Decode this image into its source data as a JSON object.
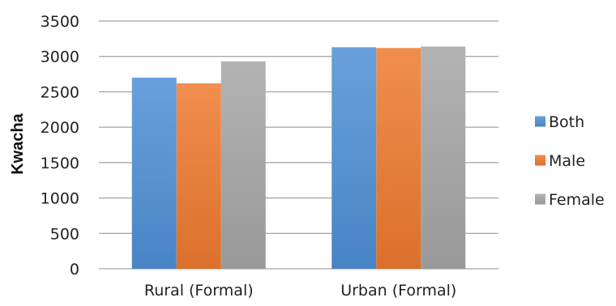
{
  "chart_data": {
    "type": "bar",
    "categories": [
      "Rural (Formal)",
      "Urban (Formal)"
    ],
    "series": [
      {
        "name": "Both",
        "values": [
          2700,
          3130
        ],
        "color": "#4e8fd6"
      },
      {
        "name": "Male",
        "values": [
          2620,
          3120
        ],
        "color": "#ee7a2f"
      },
      {
        "name": "Female",
        "values": [
          2930,
          3140
        ],
        "color": "#a6a6a6"
      }
    ],
    "title": "",
    "xlabel": "",
    "ylabel": "Kwacha",
    "ylim": [
      0,
      3500
    ],
    "yticks": [
      0,
      500,
      1000,
      1500,
      2000,
      2500,
      3000,
      3500
    ],
    "grid": true,
    "legend_position": "right"
  }
}
